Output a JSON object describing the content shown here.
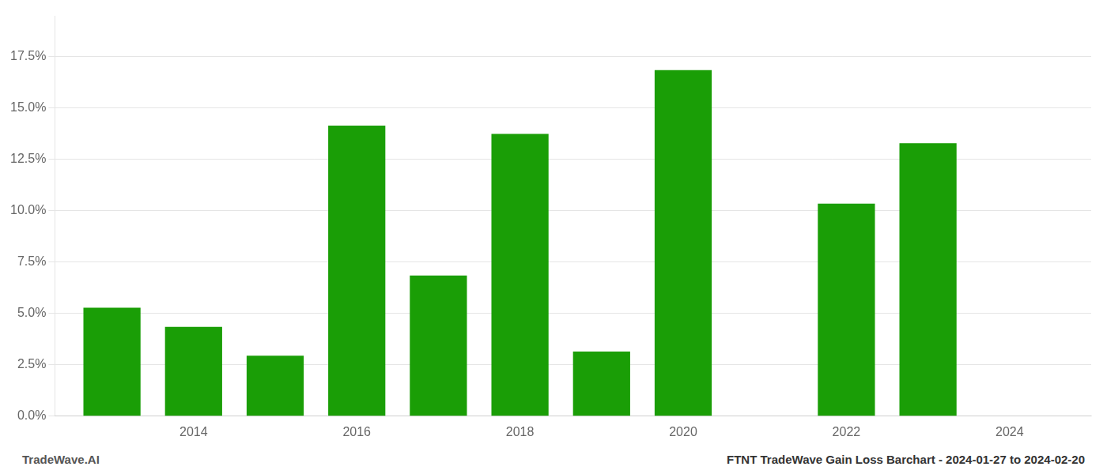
{
  "chart_data": {
    "type": "bar",
    "x": [
      2013,
      2014,
      2015,
      2016,
      2017,
      2018,
      2019,
      2020,
      2022,
      2023
    ],
    "values": [
      0.0528,
      0.0435,
      0.0295,
      0.1415,
      0.0685,
      0.1375,
      0.0315,
      0.1685,
      0.1035,
      0.133
    ],
    "color": "#1a9e06",
    "xlim": [
      2012.3,
      2025.0
    ],
    "xticks": [
      2014,
      2016,
      2018,
      2020,
      2022,
      2024
    ],
    "ylim": [
      0,
      0.195
    ],
    "yticks": [
      {
        "value": 0.0,
        "label": "0.0%"
      },
      {
        "value": 0.025,
        "label": "2.5%"
      },
      {
        "value": 0.05,
        "label": "5.0%"
      },
      {
        "value": 0.075,
        "label": "7.5%"
      },
      {
        "value": 0.1,
        "label": "10.0%"
      },
      {
        "value": 0.125,
        "label": "12.5%"
      },
      {
        "value": 0.15,
        "label": "15.0%"
      },
      {
        "value": 0.175,
        "label": "17.5%"
      }
    ],
    "grid": "y",
    "annotations": [
      "TradeWave.AI",
      "FTNT TradeWave Gain Loss Barchart - 2024-01-27 to 2024-02-20"
    ]
  }
}
